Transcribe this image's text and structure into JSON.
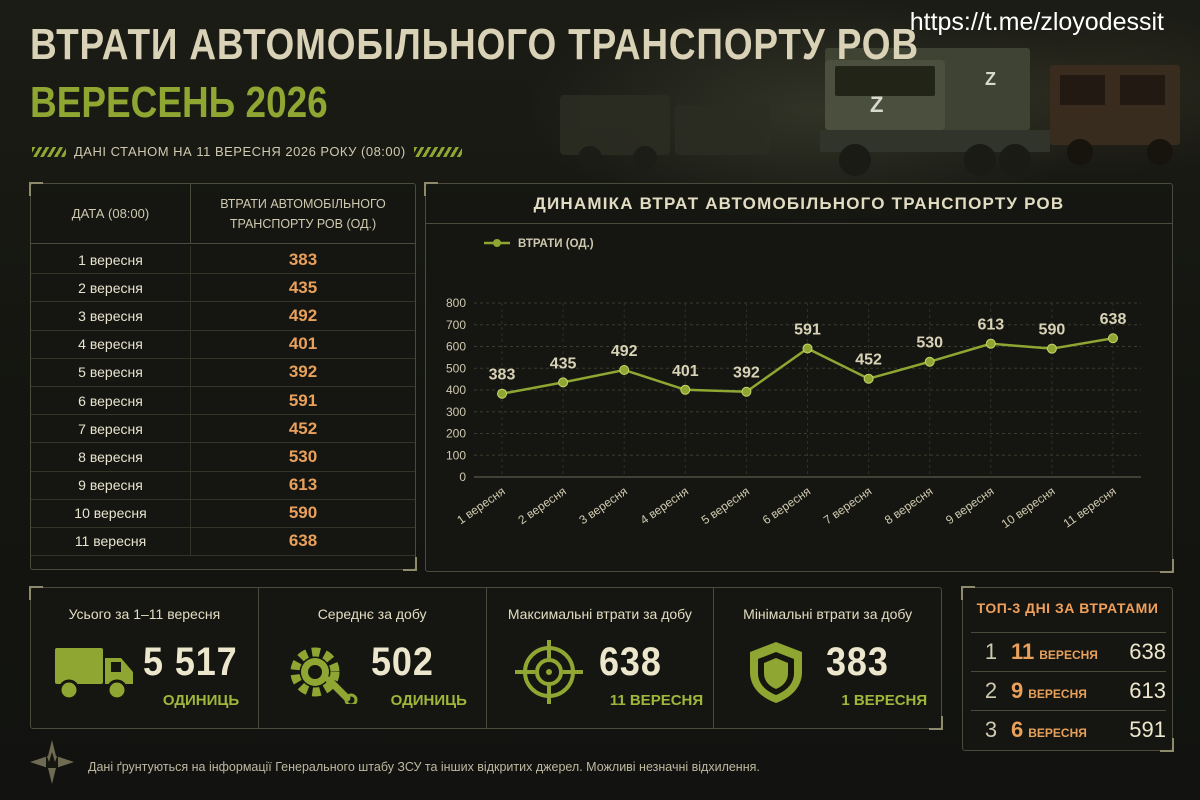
{
  "header": {
    "watermark": "https://t.me/zloyodessit",
    "title": "ВТРАТИ АВТОМОБІЛЬНОГО ТРАНСПОРТУ РОВ",
    "subtitle": "ВЕРЕСЕНЬ 2026",
    "as_of": "ДАНІ СТАНОМ НА 11 ВЕРЕСНЯ 2026 РОКУ (08:00)"
  },
  "colors": {
    "accent_green": "#8fa632",
    "accent_orange": "#e8a05a",
    "line_green": "#8fa632",
    "background": "#15160f"
  },
  "table": {
    "col1": "ДАТА (08:00)",
    "col2_line1": "ВТРАТИ АВТОМОБІЛЬНОГО",
    "col2_line2": "ТРАНСПОРТУ РОВ (ОД.)",
    "rows": [
      {
        "date": "1 вересня",
        "value": "383"
      },
      {
        "date": "2 вересня",
        "value": "435"
      },
      {
        "date": "3 вересня",
        "value": "492"
      },
      {
        "date": "4 вересня",
        "value": "401"
      },
      {
        "date": "5 вересня",
        "value": "392"
      },
      {
        "date": "6 вересня",
        "value": "591"
      },
      {
        "date": "7 вересня",
        "value": "452"
      },
      {
        "date": "8 вересня",
        "value": "530"
      },
      {
        "date": "9 вересня",
        "value": "613"
      },
      {
        "date": "10 вересня",
        "value": "590"
      },
      {
        "date": "11 вересня",
        "value": "638"
      }
    ]
  },
  "chart_data": {
    "type": "line",
    "title": "ДИНАМІКА ВТРАТ АВТОМОБІЛЬНОГО ТРАНСПОРТУ РОВ",
    "categories": [
      "1 вересня",
      "2 вересня",
      "3 вересня",
      "4 вересня",
      "5 вересня",
      "6 вересня",
      "7 вересня",
      "8 вересня",
      "9 вересня",
      "10 вересня",
      "11 вересня"
    ],
    "series": [
      {
        "name": "ВТРАТИ (ОД.)",
        "values": [
          383,
          435,
          492,
          401,
          392,
          591,
          452,
          530,
          613,
          590,
          638
        ]
      }
    ],
    "ylim": [
      0,
      800
    ],
    "yticks": [
      0,
      100,
      200,
      300,
      400,
      500,
      600,
      700,
      800
    ],
    "grid": true,
    "legend_position": "top-left",
    "data_labels": true
  },
  "stats": [
    {
      "label": "Усього за 1–11 вересня",
      "value": "5 517",
      "unit": "ОДИНИЦЬ",
      "icon": "truck-icon"
    },
    {
      "label": "Середнє за добу",
      "value": "502",
      "unit": "ОДИНИЦЬ",
      "icon": "gear-wrench-icon"
    },
    {
      "label": "Максимальні втрати за добу",
      "value": "638",
      "unit": "11 ВЕРЕСНЯ",
      "icon": "crosshair-icon"
    },
    {
      "label": "Мінімальні втрати за добу",
      "value": "383",
      "unit": "1 ВЕРЕСНЯ",
      "icon": "shield-icon"
    }
  ],
  "top3": {
    "title": "ТОП-3 ДНІ ЗА ВТРАТАМИ",
    "items": [
      {
        "rank": "1",
        "day": "11",
        "month": "ВЕРЕСНЯ",
        "value": "638"
      },
      {
        "rank": "2",
        "day": "9",
        "month": "ВЕРЕСНЯ",
        "value": "613"
      },
      {
        "rank": "3",
        "day": "6",
        "month": "ВЕРЕСНЯ",
        "value": "591"
      }
    ]
  },
  "footer": "Дані ґрунтуються на інформації Генерального штабу ЗСУ та інших відкритих джерел. Можливі незначні відхилення.",
  "emblem_icon": "trident-emblem-icon"
}
